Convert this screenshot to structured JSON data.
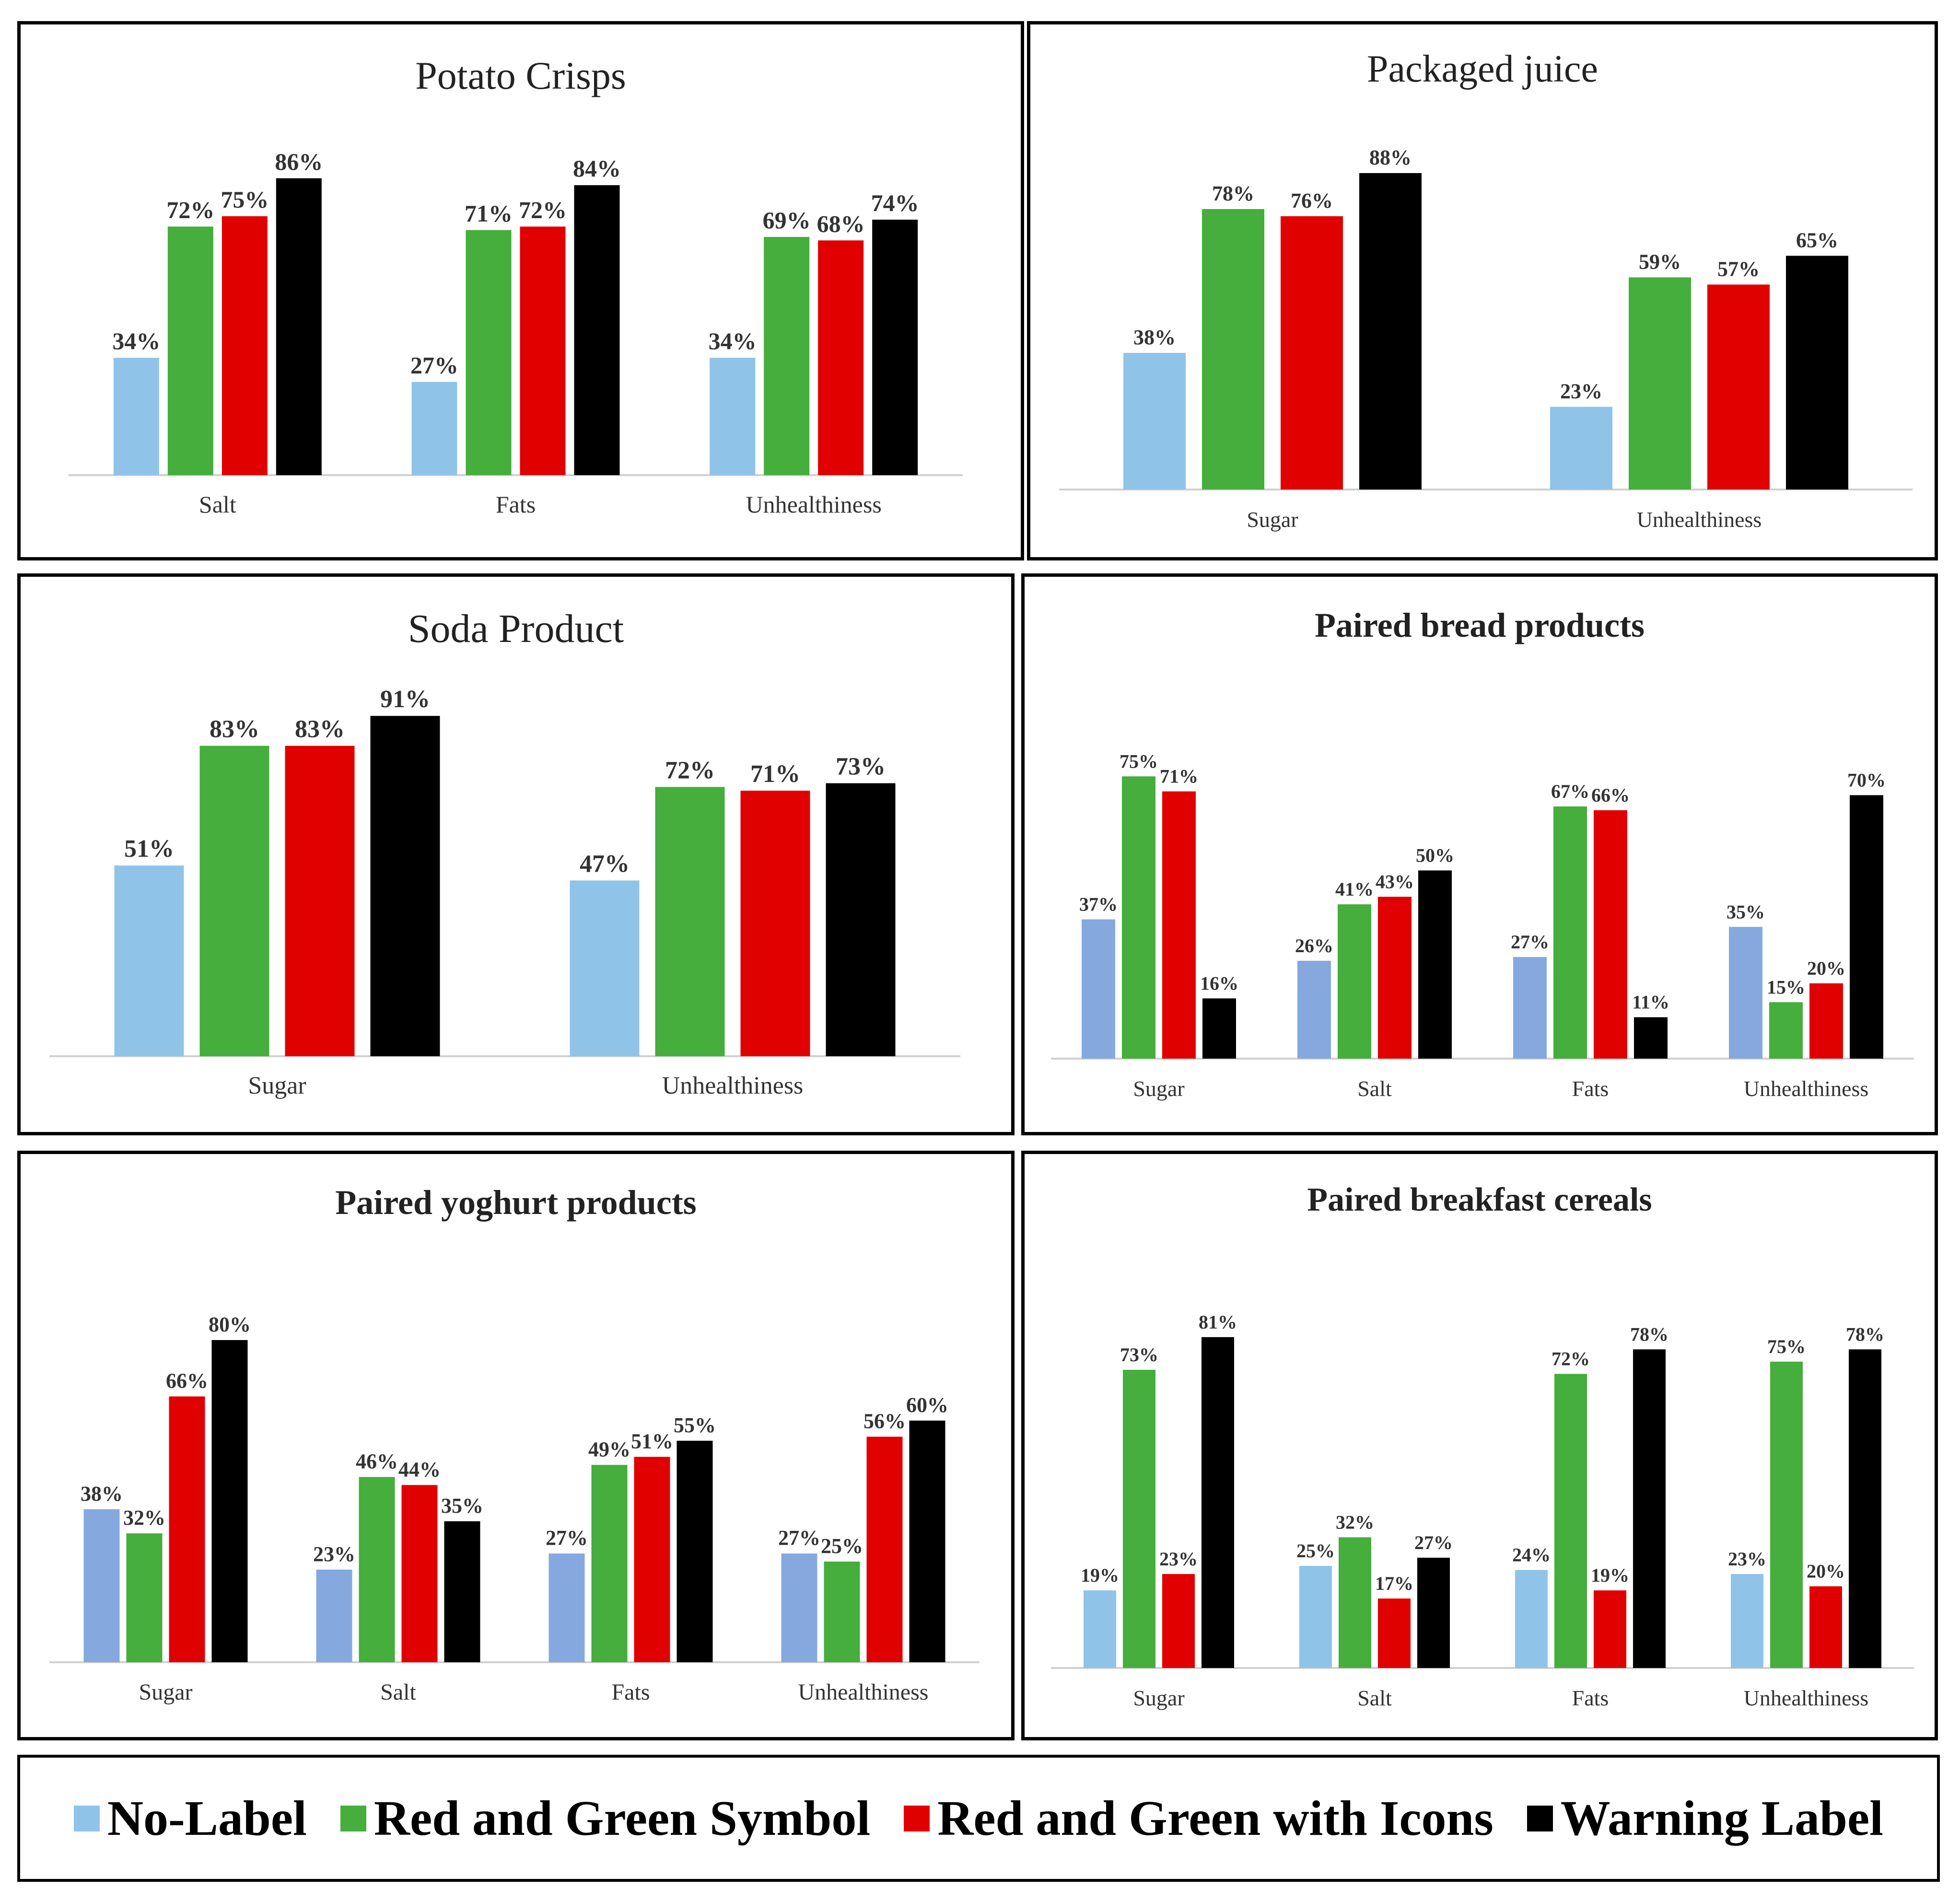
{
  "colors": {
    "no_label": "#8FC4E8",
    "no_label_alt": "#85A9DF",
    "red_green_symbol": "#45AE3C",
    "red_green_icons": "#E00000",
    "warning": "#000000"
  },
  "legend": {
    "items": [
      {
        "label": "No-Label",
        "color": "#8FC4E8"
      },
      {
        "label": "Red and Green Symbol",
        "color": "#45AE3C"
      },
      {
        "label": "Red and Green with Icons",
        "color": "#E00000"
      },
      {
        "label": "Warning Label",
        "color": "#000000"
      }
    ]
  },
  "chart_data": [
    {
      "type": "bar",
      "title": "Potato Crisps",
      "categories": [
        "Salt",
        "Fats",
        "Unhealthiness"
      ],
      "series": [
        {
          "name": "No-Label",
          "values": [
            34,
            27,
            34
          ]
        },
        {
          "name": "Red and Green Symbol",
          "values": [
            72,
            71,
            69
          ]
        },
        {
          "name": "Red and Green with Icons",
          "values": [
            75,
            72,
            68
          ]
        },
        {
          "name": "Warning Label",
          "values": [
            86,
            84,
            74
          ]
        }
      ],
      "data_labels": [
        [
          "34%",
          "72%",
          "75%",
          "86%"
        ],
        [
          "27%",
          "71%",
          "72%",
          "84%"
        ],
        [
          "34%",
          "69%",
          "68%",
          "74%"
        ]
      ]
    },
    {
      "type": "bar",
      "title": "Packaged juice",
      "categories": [
        "Sugar",
        "Unhealthiness"
      ],
      "series": [
        {
          "name": "No-Label",
          "values": [
            38,
            23
          ]
        },
        {
          "name": "Red and Green Symbol",
          "values": [
            78,
            59
          ]
        },
        {
          "name": "Red and Green with Icons",
          "values": [
            76,
            57
          ]
        },
        {
          "name": "Warning Label",
          "values": [
            88,
            65
          ]
        }
      ],
      "data_labels": [
        [
          "38%",
          "78%",
          "76%",
          "88%"
        ],
        [
          "23%",
          "59%",
          "57%",
          "65%"
        ]
      ]
    },
    {
      "type": "bar",
      "title": "Soda Product",
      "categories": [
        "Sugar",
        "Unhealthiness"
      ],
      "series": [
        {
          "name": "No-Label",
          "values": [
            51,
            47
          ]
        },
        {
          "name": "Red and Green Symbol",
          "values": [
            83,
            72
          ]
        },
        {
          "name": "Red and Green with Icons",
          "values": [
            83,
            71
          ]
        },
        {
          "name": "Warning Label",
          "values": [
            91,
            73
          ]
        }
      ],
      "data_labels": [
        [
          "51%",
          "83%",
          "83%",
          "91%"
        ],
        [
          "47%",
          "72%",
          "71%",
          "73%"
        ]
      ]
    },
    {
      "type": "bar",
      "title": "Paired bread products",
      "categories": [
        "Sugar",
        "Salt",
        "Fats",
        "Unhealthiness"
      ],
      "series": [
        {
          "name": "No-Label",
          "values": [
            37,
            26,
            27,
            35
          ]
        },
        {
          "name": "Red and Green Symbol",
          "values": [
            75,
            41,
            67,
            15
          ]
        },
        {
          "name": "Red and Green with Icons",
          "values": [
            71,
            43,
            66,
            20
          ]
        },
        {
          "name": "Warning Label",
          "values": [
            16,
            50,
            11,
            70
          ]
        }
      ],
      "data_labels": [
        [
          "37%",
          "75%",
          "71%",
          "16%"
        ],
        [
          "26%",
          "41%",
          "43%",
          "50%"
        ],
        [
          "27%",
          "67%",
          "66%",
          "11%"
        ],
        [
          "35%",
          "15%",
          "20%",
          "70%"
        ]
      ]
    },
    {
      "type": "bar",
      "title": "Paired yoghurt products",
      "categories": [
        "Sugar",
        "Salt",
        "Fats",
        "Unhealthiness"
      ],
      "series": [
        {
          "name": "No-Label",
          "values": [
            38,
            23,
            27,
            27
          ]
        },
        {
          "name": "Red and Green Symbol",
          "values": [
            32,
            46,
            49,
            25
          ]
        },
        {
          "name": "Red and Green with Icons",
          "values": [
            66,
            44,
            51,
            56
          ]
        },
        {
          "name": "Warning Label",
          "values": [
            80,
            35,
            55,
            60
          ]
        }
      ],
      "data_labels": [
        [
          "38%",
          "32%",
          "66%",
          "80%"
        ],
        [
          "23%",
          "46%",
          "44%",
          "35%"
        ],
        [
          "27%",
          "49%",
          "51%",
          "55%"
        ],
        [
          "27%",
          "25%",
          "56%",
          "60%"
        ]
      ]
    },
    {
      "type": "bar",
      "title": "Paired breakfast cereals",
      "categories": [
        "Sugar",
        "Salt",
        "Fats",
        "Unhealthiness"
      ],
      "series": [
        {
          "name": "No-Label",
          "values": [
            19,
            25,
            24,
            23
          ]
        },
        {
          "name": "Red and Green Symbol",
          "values": [
            73,
            32,
            72,
            75
          ]
        },
        {
          "name": "Red and Green with Icons",
          "values": [
            23,
            17,
            19,
            20
          ]
        },
        {
          "name": "Warning Label",
          "values": [
            81,
            27,
            78,
            78
          ]
        }
      ],
      "data_labels": [
        [
          "19%",
          "73%",
          "23%",
          "81%"
        ],
        [
          "25%",
          "32%",
          "17%",
          "27%"
        ],
        [
          "24%",
          "72%",
          "19%",
          "78%"
        ],
        [
          "23%",
          "75%",
          "20%",
          "78%"
        ]
      ]
    }
  ]
}
